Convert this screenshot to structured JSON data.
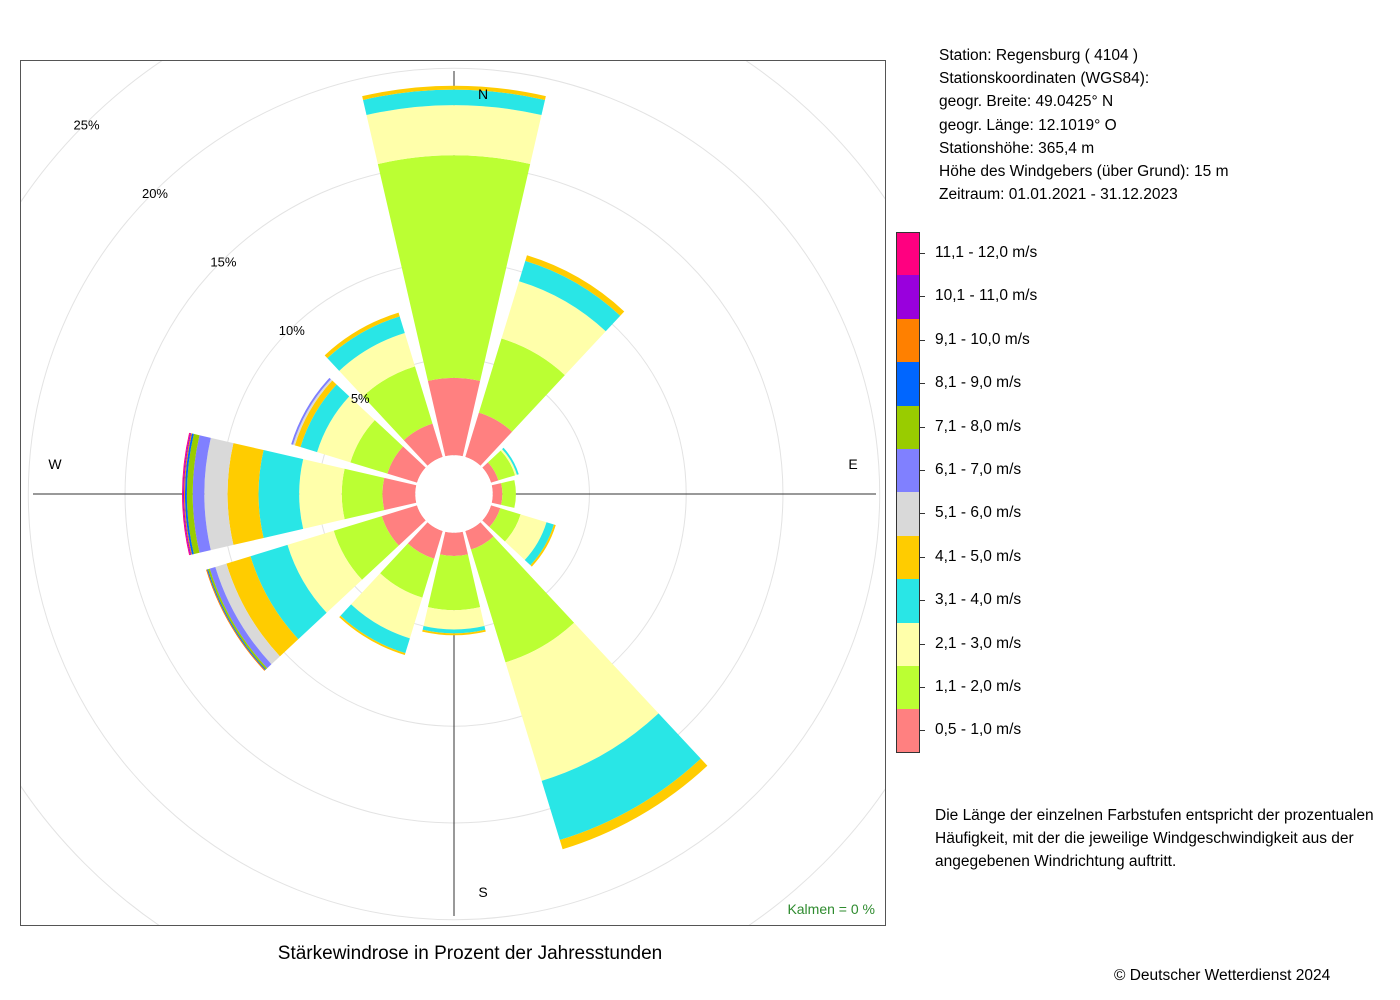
{
  "chart_data": {
    "type": "wind-rose",
    "title": "Stärkewindrose in Prozent der Jahresstunden",
    "radial_ticks": [
      5,
      10,
      15,
      20,
      25
    ],
    "radial_tick_labels": [
      "5%",
      "10%",
      "15%",
      "20%",
      "25%"
    ],
    "radial_axis_max": 25,
    "inner_hole": 2,
    "compass_labels": [
      "N",
      "E",
      "S",
      "W"
    ],
    "calms": "Kalmen  =  0 %",
    "speed_classes": [
      {
        "label": "0,5 - 1,0 m/s",
        "color": "#ff8080"
      },
      {
        "label": "1,1 - 2,0 m/s",
        "color": "#bbff33"
      },
      {
        "label": "2,1 - 3,0 m/s",
        "color": "#ffffaa"
      },
      {
        "label": "3,1 - 4,0 m/s",
        "color": "#29e6e6"
      },
      {
        "label": "4,1 - 5,0 m/s",
        "color": "#ffcc00"
      },
      {
        "label": "5,1 - 6,0 m/s",
        "color": "#d9d9d9"
      },
      {
        "label": "6,1 - 7,0 m/s",
        "color": "#8080ff"
      },
      {
        "label": "7,1 - 8,0 m/s",
        "color": "#99cc00"
      },
      {
        "label": "8,1 - 9,0 m/s",
        "color": "#0066ff"
      },
      {
        "label": "9,1 - 10,0 m/s",
        "color": "#ff8000"
      },
      {
        "label": "10,1 - 11,0 m/s",
        "color": "#9900dd"
      },
      {
        "label": "11,1 - 12,0 m/s",
        "color": "#ff0080"
      }
    ],
    "directions": [
      {
        "dir": 0,
        "values": [
          4.0,
          11.5,
          2.6,
          0.8,
          0.2
        ]
      },
      {
        "dir": 30,
        "values": [
          2.4,
          4.0,
          3.1,
          1.1,
          0.3
        ]
      },
      {
        "dir": 60,
        "values": [
          0.4,
          0.9,
          0.1,
          0.1
        ]
      },
      {
        "dir": 90,
        "values": [
          0.5,
          0.7
        ]
      },
      {
        "dir": 120,
        "values": [
          0.5,
          1.1,
          1.4,
          0.4,
          0.1
        ]
      },
      {
        "dir": 150,
        "values": [
          1.0,
          6.1,
          6.4,
          3.2,
          0.5
        ]
      },
      {
        "dir": 180,
        "values": [
          1.2,
          2.8,
          1.0,
          0.2,
          0.1
        ]
      },
      {
        "dir": 210,
        "values": [
          1.5,
          2.1,
          2.2,
          0.8,
          0.1
        ]
      },
      {
        "dir": 240,
        "values": [
          1.9,
          2.6,
          2.5,
          2.0,
          1.3,
          0.6,
          0.3,
          0.1,
          0.05,
          0.05
        ]
      },
      {
        "dir": 270,
        "values": [
          1.7,
          2.1,
          2.2,
          2.1,
          1.6,
          1.2,
          0.6,
          0.3,
          0.1,
          0.05,
          0.05,
          0.05
        ]
      },
      {
        "dir": 300,
        "values": [
          1.6,
          2.0,
          1.8,
          0.9,
          0.3,
          0.1,
          0.1
        ]
      },
      {
        "dir": 330,
        "values": [
          1.8,
          3.1,
          1.8,
          0.9,
          0.2
        ]
      }
    ]
  },
  "station": {
    "line1": "Station:  Regensburg  ( 4104 )",
    "line2": "Stationskoordinaten (WGS84):",
    "line3": "geogr. Breite: 49.0425° N",
    "line4": "geogr. Länge: 12.1019° O",
    "line5": "Stationshöhe: 365,4 m",
    "line6": "Höhe des Windgebers (über Grund): 15 m",
    "line7": "Zeitraum: 01.01.2021 - 31.12.2023"
  },
  "note": {
    "line1": "Die Länge der einzelnen Farbstufen entspricht der prozentualen",
    "line2": "Häufigkeit, mit der die jeweilige Windgeschwindigkeit aus der",
    "line3": "angegebenen Windrichtung auftritt."
  },
  "copyright": "© Deutscher Wetterdienst  2024"
}
